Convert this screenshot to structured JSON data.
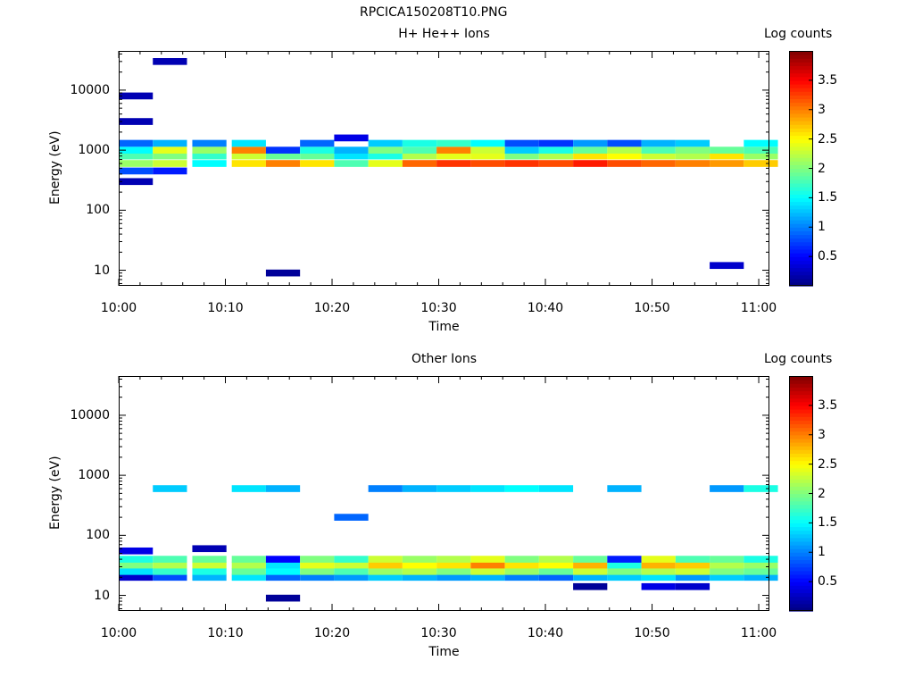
{
  "figure": {
    "title": "RPCICA150208T10.PNG"
  },
  "panels": [
    {
      "title": "H+ He++ Ions",
      "ylabel": "Energy (eV)",
      "xlabel": "Time",
      "colorbar_label": "Log counts"
    },
    {
      "title": "Other Ions",
      "ylabel": "Energy (eV)",
      "xlabel": "Time",
      "colorbar_label": "Log counts"
    }
  ],
  "chart_data": [
    {
      "type": "heatmap",
      "title": "H+ He++ Ions",
      "xlabel": "Time",
      "ylabel": "Energy (eV)",
      "colorbar_label": "Log counts",
      "colormap": "jet",
      "x_ticks": [
        "10:00",
        "10:10",
        "10:20",
        "10:30",
        "10:40",
        "10:50",
        "11:00"
      ],
      "x_tick_minutes": [
        0,
        10,
        20,
        30,
        40,
        50,
        60
      ],
      "x_range_minutes": [
        0,
        61
      ],
      "y_scale": "log",
      "y_range": [
        5.5,
        45000
      ],
      "y_ticks": [
        10,
        100,
        1000,
        10000
      ],
      "colorbar_ticks": [
        0.5,
        1,
        1.5,
        2,
        2.5,
        3,
        3.5
      ],
      "colorbar_range": [
        0,
        4
      ],
      "time_bin_starts_minutes": [
        0,
        3.2,
        6.9,
        10.6,
        13.8,
        17,
        20.2,
        23.4,
        26.6,
        29.8,
        33,
        36.2,
        39.4,
        42.6,
        45.8,
        49,
        52.2,
        55.4,
        58.6
      ],
      "time_bin_width_minutes": 3.2,
      "cells": [
        {
          "t": 0,
          "e": 600,
          "v": 2.1
        },
        {
          "t": 0,
          "e": 800,
          "v": 1.8
        },
        {
          "t": 0,
          "e": 1000,
          "v": 1.5
        },
        {
          "t": 0,
          "e": 1300,
          "v": 0.9
        },
        {
          "t": 0,
          "e": 450,
          "v": 0.8
        },
        {
          "t": 0,
          "e": 300,
          "v": 0.2
        },
        {
          "t": 0,
          "e": 3000,
          "v": 0.2
        },
        {
          "t": 0,
          "e": 8000,
          "v": 0.2
        },
        {
          "t": 3.2,
          "e": 600,
          "v": 2.3
        },
        {
          "t": 3.2,
          "e": 800,
          "v": 2.0
        },
        {
          "t": 3.2,
          "e": 1000,
          "v": 2.4
        },
        {
          "t": 3.2,
          "e": 1300,
          "v": 1.2
        },
        {
          "t": 3.2,
          "e": 450,
          "v": 0.6
        },
        {
          "t": 3.2,
          "e": 30000,
          "v": 0.2
        },
        {
          "t": 6.9,
          "e": 600,
          "v": 1.5
        },
        {
          "t": 6.9,
          "e": 800,
          "v": 1.7
        },
        {
          "t": 6.9,
          "e": 1000,
          "v": 2.1
        },
        {
          "t": 6.9,
          "e": 1300,
          "v": 1.0
        },
        {
          "t": 10.6,
          "e": 600,
          "v": 2.6
        },
        {
          "t": 10.6,
          "e": 800,
          "v": 2.3
        },
        {
          "t": 10.6,
          "e": 1000,
          "v": 3.0
        },
        {
          "t": 10.6,
          "e": 1300,
          "v": 1.4
        },
        {
          "t": 13.8,
          "e": 600,
          "v": 3.0
        },
        {
          "t": 13.8,
          "e": 800,
          "v": 1.9
        },
        {
          "t": 13.8,
          "e": 1000,
          "v": 0.7
        },
        {
          "t": 13.8,
          "e": 9,
          "v": 0.1
        },
        {
          "t": 17,
          "e": 600,
          "v": 2.6
        },
        {
          "t": 17,
          "e": 800,
          "v": 1.9
        },
        {
          "t": 17,
          "e": 1000,
          "v": 1.6
        },
        {
          "t": 17,
          "e": 1300,
          "v": 0.9
        },
        {
          "t": 20.2,
          "e": 600,
          "v": 1.8
        },
        {
          "t": 20.2,
          "e": 800,
          "v": 1.4
        },
        {
          "t": 20.2,
          "e": 1000,
          "v": 1.2
        },
        {
          "t": 20.2,
          "e": 1600,
          "v": 0.4
        },
        {
          "t": 23.4,
          "e": 600,
          "v": 2.4
        },
        {
          "t": 23.4,
          "e": 800,
          "v": 1.6
        },
        {
          "t": 23.4,
          "e": 1000,
          "v": 2.0
        },
        {
          "t": 23.4,
          "e": 1300,
          "v": 1.3
        },
        {
          "t": 26.6,
          "e": 600,
          "v": 3.1
        },
        {
          "t": 26.6,
          "e": 800,
          "v": 2.2
        },
        {
          "t": 26.6,
          "e": 1000,
          "v": 1.8
        },
        {
          "t": 26.6,
          "e": 1300,
          "v": 1.6
        },
        {
          "t": 29.8,
          "e": 600,
          "v": 3.3
        },
        {
          "t": 29.8,
          "e": 800,
          "v": 2.4
        },
        {
          "t": 29.8,
          "e": 1000,
          "v": 3.0
        },
        {
          "t": 29.8,
          "e": 1300,
          "v": 1.7
        },
        {
          "t": 33,
          "e": 600,
          "v": 3.2
        },
        {
          "t": 33,
          "e": 800,
          "v": 2.4
        },
        {
          "t": 33,
          "e": 1000,
          "v": 2.3
        },
        {
          "t": 33,
          "e": 1300,
          "v": 1.5
        },
        {
          "t": 36.2,
          "e": 600,
          "v": 3.3
        },
        {
          "t": 36.2,
          "e": 800,
          "v": 2.0
        },
        {
          "t": 36.2,
          "e": 1000,
          "v": 1.3
        },
        {
          "t": 36.2,
          "e": 1300,
          "v": 0.8
        },
        {
          "t": 39.4,
          "e": 600,
          "v": 3.2
        },
        {
          "t": 39.4,
          "e": 800,
          "v": 2.2
        },
        {
          "t": 39.4,
          "e": 1000,
          "v": 1.6
        },
        {
          "t": 39.4,
          "e": 1300,
          "v": 0.7
        },
        {
          "t": 42.6,
          "e": 600,
          "v": 3.4
        },
        {
          "t": 42.6,
          "e": 800,
          "v": 2.6
        },
        {
          "t": 42.6,
          "e": 1000,
          "v": 1.9
        },
        {
          "t": 42.6,
          "e": 1300,
          "v": 1.1
        },
        {
          "t": 45.8,
          "e": 600,
          "v": 3.2
        },
        {
          "t": 45.8,
          "e": 800,
          "v": 2.5
        },
        {
          "t": 45.8,
          "e": 1000,
          "v": 2.2
        },
        {
          "t": 45.8,
          "e": 1300,
          "v": 0.8
        },
        {
          "t": 49,
          "e": 600,
          "v": 3.1
        },
        {
          "t": 49,
          "e": 800,
          "v": 2.3
        },
        {
          "t": 49,
          "e": 1000,
          "v": 1.8
        },
        {
          "t": 49,
          "e": 1300,
          "v": 1.2
        },
        {
          "t": 52.2,
          "e": 600,
          "v": 3.0
        },
        {
          "t": 52.2,
          "e": 800,
          "v": 2.2
        },
        {
          "t": 52.2,
          "e": 1000,
          "v": 2.0
        },
        {
          "t": 52.2,
          "e": 1300,
          "v": 1.3
        },
        {
          "t": 55.4,
          "e": 600,
          "v": 2.9
        },
        {
          "t": 55.4,
          "e": 800,
          "v": 2.6
        },
        {
          "t": 55.4,
          "e": 1000,
          "v": 1.9
        },
        {
          "t": 55.4,
          "e": 12,
          "v": 0.3
        },
        {
          "t": 58.6,
          "e": 600,
          "v": 2.7
        },
        {
          "t": 58.6,
          "e": 800,
          "v": 2.1
        },
        {
          "t": 58.6,
          "e": 1000,
          "v": 1.8
        },
        {
          "t": 58.6,
          "e": 1300,
          "v": 1.5
        }
      ]
    },
    {
      "type": "heatmap",
      "title": "Other Ions",
      "xlabel": "Time",
      "ylabel": "Energy (eV)",
      "colorbar_label": "Log counts",
      "colormap": "jet",
      "x_ticks": [
        "10:00",
        "10:10",
        "10:20",
        "10:30",
        "10:40",
        "10:50",
        "11:00"
      ],
      "x_tick_minutes": [
        0,
        10,
        20,
        30,
        40,
        50,
        60
      ],
      "x_range_minutes": [
        0,
        61
      ],
      "y_scale": "log",
      "y_range": [
        5.5,
        45000
      ],
      "y_ticks": [
        10,
        100,
        1000,
        10000
      ],
      "colorbar_ticks": [
        0.5,
        1,
        1.5,
        2,
        2.5,
        3,
        3.5
      ],
      "colorbar_range": [
        0,
        4
      ],
      "time_bin_starts_minutes": [
        0,
        3.2,
        6.9,
        10.6,
        13.8,
        17,
        20.2,
        23.4,
        26.6,
        29.8,
        33,
        36.2,
        39.4,
        42.6,
        45.8,
        49,
        52.2,
        55.4,
        58.6
      ],
      "time_bin_width_minutes": 3.2,
      "cells": [
        {
          "t": 0,
          "e": 20,
          "v": 0.3
        },
        {
          "t": 0,
          "e": 25,
          "v": 1.4
        },
        {
          "t": 0,
          "e": 32,
          "v": 2.0
        },
        {
          "t": 0,
          "e": 40,
          "v": 1.6
        },
        {
          "t": 0,
          "e": 55,
          "v": 0.4
        },
        {
          "t": 3.2,
          "e": 20,
          "v": 0.8
        },
        {
          "t": 3.2,
          "e": 25,
          "v": 1.7
        },
        {
          "t": 3.2,
          "e": 32,
          "v": 2.2
        },
        {
          "t": 3.2,
          "e": 40,
          "v": 1.8
        },
        {
          "t": 3.2,
          "e": 600,
          "v": 1.3
        },
        {
          "t": 6.9,
          "e": 20,
          "v": 1.2
        },
        {
          "t": 6.9,
          "e": 25,
          "v": 1.6
        },
        {
          "t": 6.9,
          "e": 32,
          "v": 2.3
        },
        {
          "t": 6.9,
          "e": 40,
          "v": 1.9
        },
        {
          "t": 6.9,
          "e": 60,
          "v": 0.2
        },
        {
          "t": 10.6,
          "e": 20,
          "v": 1.4
        },
        {
          "t": 10.6,
          "e": 25,
          "v": 1.9
        },
        {
          "t": 10.6,
          "e": 32,
          "v": 2.2
        },
        {
          "t": 10.6,
          "e": 40,
          "v": 1.9
        },
        {
          "t": 10.6,
          "e": 600,
          "v": 1.4
        },
        {
          "t": 13.8,
          "e": 20,
          "v": 0.9
        },
        {
          "t": 13.8,
          "e": 25,
          "v": 1.5
        },
        {
          "t": 13.8,
          "e": 32,
          "v": 1.4
        },
        {
          "t": 13.8,
          "e": 40,
          "v": 0.5
        },
        {
          "t": 13.8,
          "e": 9,
          "v": 0.1
        },
        {
          "t": 13.8,
          "e": 600,
          "v": 1.2
        },
        {
          "t": 17,
          "e": 20,
          "v": 1.0
        },
        {
          "t": 17,
          "e": 25,
          "v": 2.0
        },
        {
          "t": 17,
          "e": 32,
          "v": 2.4
        },
        {
          "t": 17,
          "e": 40,
          "v": 2.0
        },
        {
          "t": 20.2,
          "e": 20,
          "v": 1.1
        },
        {
          "t": 20.2,
          "e": 25,
          "v": 1.8
        },
        {
          "t": 20.2,
          "e": 32,
          "v": 2.3
        },
        {
          "t": 20.2,
          "e": 40,
          "v": 1.7
        },
        {
          "t": 20.2,
          "e": 200,
          "v": 0.9
        },
        {
          "t": 23.4,
          "e": 20,
          "v": 1.3
        },
        {
          "t": 23.4,
          "e": 25,
          "v": 2.1
        },
        {
          "t": 23.4,
          "e": 32,
          "v": 2.7
        },
        {
          "t": 23.4,
          "e": 40,
          "v": 2.3
        },
        {
          "t": 23.4,
          "e": 600,
          "v": 1.0
        },
        {
          "t": 26.6,
          "e": 20,
          "v": 1.2
        },
        {
          "t": 26.6,
          "e": 25,
          "v": 2.2
        },
        {
          "t": 26.6,
          "e": 32,
          "v": 2.5
        },
        {
          "t": 26.6,
          "e": 40,
          "v": 2.1
        },
        {
          "t": 26.6,
          "e": 600,
          "v": 1.2
        },
        {
          "t": 29.8,
          "e": 20,
          "v": 1.1
        },
        {
          "t": 29.8,
          "e": 25,
          "v": 2.0
        },
        {
          "t": 29.8,
          "e": 32,
          "v": 2.6
        },
        {
          "t": 29.8,
          "e": 40,
          "v": 2.2
        },
        {
          "t": 29.8,
          "e": 600,
          "v": 1.3
        },
        {
          "t": 33,
          "e": 20,
          "v": 1.2
        },
        {
          "t": 33,
          "e": 25,
          "v": 2.3
        },
        {
          "t": 33,
          "e": 32,
          "v": 3.0
        },
        {
          "t": 33,
          "e": 40,
          "v": 2.4
        },
        {
          "t": 33,
          "e": 600,
          "v": 1.4
        },
        {
          "t": 36.2,
          "e": 20,
          "v": 1.0
        },
        {
          "t": 36.2,
          "e": 25,
          "v": 2.1
        },
        {
          "t": 36.2,
          "e": 32,
          "v": 2.6
        },
        {
          "t": 36.2,
          "e": 40,
          "v": 2.0
        },
        {
          "t": 36.2,
          "e": 600,
          "v": 1.5
        },
        {
          "t": 39.4,
          "e": 20,
          "v": 0.9
        },
        {
          "t": 39.4,
          "e": 25,
          "v": 1.9
        },
        {
          "t": 39.4,
          "e": 32,
          "v": 2.5
        },
        {
          "t": 39.4,
          "e": 40,
          "v": 2.2
        },
        {
          "t": 39.4,
          "e": 600,
          "v": 1.4
        },
        {
          "t": 42.6,
          "e": 20,
          "v": 1.2
        },
        {
          "t": 42.6,
          "e": 25,
          "v": 2.3
        },
        {
          "t": 42.6,
          "e": 32,
          "v": 2.8
        },
        {
          "t": 42.6,
          "e": 40,
          "v": 1.9
        },
        {
          "t": 42.6,
          "e": 14,
          "v": 0.1
        },
        {
          "t": 45.8,
          "e": 20,
          "v": 1.3
        },
        {
          "t": 45.8,
          "e": 25,
          "v": 2.0
        },
        {
          "t": 45.8,
          "e": 32,
          "v": 1.6
        },
        {
          "t": 45.8,
          "e": 40,
          "v": 0.6
        },
        {
          "t": 45.8,
          "e": 600,
          "v": 1.2
        },
        {
          "t": 49,
          "e": 20,
          "v": 1.4
        },
        {
          "t": 49,
          "e": 25,
          "v": 2.2
        },
        {
          "t": 49,
          "e": 32,
          "v": 2.8
        },
        {
          "t": 49,
          "e": 40,
          "v": 2.4
        },
        {
          "t": 49,
          "e": 14,
          "v": 0.4
        },
        {
          "t": 52.2,
          "e": 20,
          "v": 1.1
        },
        {
          "t": 52.2,
          "e": 25,
          "v": 2.3
        },
        {
          "t": 52.2,
          "e": 32,
          "v": 2.7
        },
        {
          "t": 52.2,
          "e": 40,
          "v": 1.8
        },
        {
          "t": 52.2,
          "e": 14,
          "v": 0.3
        },
        {
          "t": 55.4,
          "e": 20,
          "v": 1.3
        },
        {
          "t": 55.4,
          "e": 25,
          "v": 2.0
        },
        {
          "t": 55.4,
          "e": 32,
          "v": 2.2
        },
        {
          "t": 55.4,
          "e": 40,
          "v": 1.9
        },
        {
          "t": 55.4,
          "e": 600,
          "v": 1.1
        },
        {
          "t": 58.6,
          "e": 20,
          "v": 1.2
        },
        {
          "t": 58.6,
          "e": 25,
          "v": 1.9
        },
        {
          "t": 58.6,
          "e": 32,
          "v": 2.1
        },
        {
          "t": 58.6,
          "e": 40,
          "v": 1.6
        },
        {
          "t": 58.6,
          "e": 600,
          "v": 1.6
        }
      ]
    }
  ]
}
